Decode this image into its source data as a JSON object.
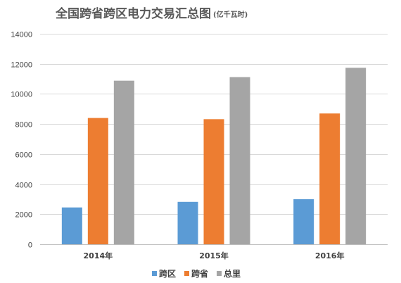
{
  "chart_data": {
    "type": "bar",
    "title": "全国跨省跨区电力交易汇总图",
    "title_unit": "(亿千瓦时)",
    "categories": [
      "2014年",
      "2015年",
      "2016年"
    ],
    "series": [
      {
        "name": "跨区",
        "color": "#5b9bd5",
        "values": [
          2450,
          2820,
          3000
        ]
      },
      {
        "name": "跨省",
        "color": "#ed7d31",
        "values": [
          8400,
          8320,
          8700
        ]
      },
      {
        "name": "总里",
        "color": "#a5a5a5",
        "values": [
          10880,
          11120,
          11740
        ]
      }
    ],
    "yticks": [
      0,
      2000,
      4000,
      6000,
      8000,
      10000,
      12000,
      14000
    ],
    "ylim": [
      0,
      14000
    ],
    "grid": true,
    "legend": "bottom-center"
  }
}
